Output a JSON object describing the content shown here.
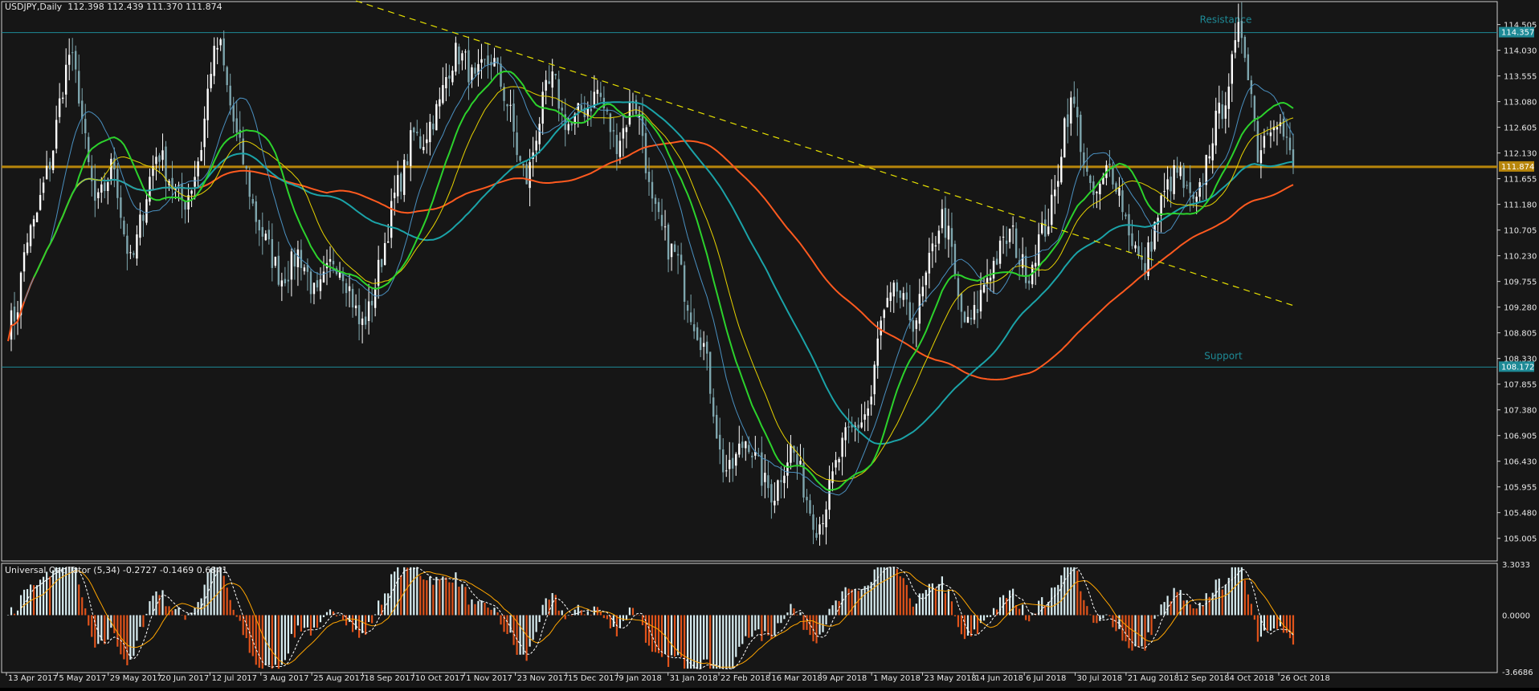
{
  "header": {
    "symbol_tf": "USDJPY,Daily",
    "ohlc": "112.398 112.439 111.370 111.874"
  },
  "oscillator_header": "Universal Oscillator (5,34) -0.2727 -0.1469 0.6841",
  "colors": {
    "background": "#161616",
    "bull_candle": "#ffffff",
    "bear_candle": "#7ea6ae",
    "resistance_line": "#1e8a96",
    "support_line": "#1e8a96",
    "price_line": "#b8860b",
    "trendline": "#e6e000",
    "ma_slow": "#ff5a1f",
    "ma_teal": "#1ba3a8",
    "ma_yellow": "#e6d200",
    "ma_blue": "#4a90c0",
    "ma_signal_green": "#2cd22c",
    "ma_signal_red": "#ff2020",
    "osc_positive": "#d9eef2",
    "osc_negative": "#e0531b",
    "osc_signal": "#ffa500"
  },
  "chart_data": [
    {
      "type": "candlestick",
      "title": "USDJPY,Daily",
      "ylim": [
        104.6,
        114.9
      ],
      "y_ticks": [
        "114.505",
        "114.030",
        "113.555",
        "113.080",
        "112.605",
        "112.130",
        "111.655",
        "111.180",
        "110.705",
        "110.230",
        "109.755",
        "109.280",
        "108.805",
        "108.330",
        "107.855",
        "107.380",
        "106.905",
        "106.430",
        "105.955",
        "105.480",
        "105.005"
      ],
      "x_ticks": [
        "13 Apr 2017",
        "5 May 2017",
        "29 May 2017",
        "20 Jun 2017",
        "12 Jul 2017",
        "3 Aug 2017",
        "25 Aug 2017",
        "18 Sep 2017",
        "10 Oct 2017",
        "1 Nov 2017",
        "23 Nov 2017",
        "15 Dec 2017",
        "9 Jan 2018",
        "31 Jan 2018",
        "22 Feb 2018",
        "16 Mar 2018",
        "9 Apr 2018",
        "1 May 2018",
        "23 May 2018",
        "14 Jun 2018",
        "6 Jul 2018",
        "30 Jul 2018",
        "21 Aug 2018",
        "12 Sep 2018",
        "4 Oct 2018",
        "26 Oct 2018"
      ],
      "anchor_prices": [
        108.9,
        109.2,
        110.5,
        110.8,
        111.5,
        112.1,
        113.2,
        114.0,
        113.3,
        112.0,
        111.1,
        111.5,
        112.0,
        110.8,
        110.0,
        110.8,
        111.6,
        112.2,
        111.8,
        111.4,
        111.2,
        111.6,
        112.3,
        113.7,
        114.2,
        113.2,
        112.4,
        111.8,
        111.0,
        110.6,
        110.2,
        109.8,
        110.0,
        110.3,
        109.9,
        109.4,
        109.8,
        110.2,
        110.0,
        109.5,
        108.9,
        109.2,
        109.9,
        110.6,
        111.4,
        111.8,
        112.5,
        112.3,
        112.7,
        113.0,
        113.7,
        114.0,
        113.8,
        113.4,
        113.7,
        113.9,
        113.4,
        112.9,
        112.0,
        111.6,
        112.5,
        113.2,
        113.5,
        112.8,
        112.6,
        112.9,
        113.0,
        113.3,
        112.8,
        112.3,
        112.6,
        113.2,
        112.6,
        111.2,
        110.8,
        110.4,
        110.2,
        109.5,
        109.0,
        108.6,
        107.6,
        106.4,
        106.2,
        106.6,
        106.9,
        106.4,
        106.0,
        105.8,
        106.3,
        106.7,
        106.2,
        105.6,
        105.2,
        105.7,
        106.3,
        106.8,
        107.0,
        107.2,
        107.5,
        108.9,
        109.3,
        109.6,
        109.2,
        109.0,
        109.6,
        110.3,
        111.0,
        110.5,
        109.3,
        108.9,
        109.2,
        109.8,
        110.1,
        110.4,
        110.7,
        110.1,
        109.9,
        110.5,
        110.8,
        111.4,
        112.7,
        113.1,
        112.2,
        111.3,
        111.4,
        111.9,
        111.6,
        110.9,
        110.4,
        109.9,
        110.6,
        111.2,
        111.6,
        111.8,
        111.3,
        111.1,
        111.9,
        112.6,
        113.0,
        113.7,
        114.5,
        113.6,
        112.1,
        112.6,
        112.9,
        112.4,
        111.874
      ],
      "anchor_labels": [
        "13 Apr 2017",
        "26 Oct 2018"
      ],
      "resistance": {
        "label": "Resistance",
        "price_tag": "114.357",
        "value": 114.357
      },
      "support": {
        "label": "Support",
        "price_tag": "108.172",
        "value": 108.172
      },
      "current_price": {
        "price_tag": "111.874",
        "value": 111.874
      },
      "trendline": {
        "from": {
          "date": "13 Apr 2017",
          "price": 115.2
        },
        "to": {
          "date": "26 Oct 2018",
          "price": 109.3
        }
      }
    },
    {
      "type": "bar",
      "title": "Universal Oscillator (5,34) -0.2727 -0.1469 0.6841",
      "ylim": [
        -3.6686,
        3.3033
      ],
      "y_ticks": [
        "3.3033",
        "0.0000",
        "-3.6686"
      ],
      "series": [
        {
          "values": [
            -0.2727
          ]
        },
        {
          "values": [
            -0.1469
          ]
        },
        {
          "values": [
            0.6841
          ]
        }
      ]
    }
  ]
}
